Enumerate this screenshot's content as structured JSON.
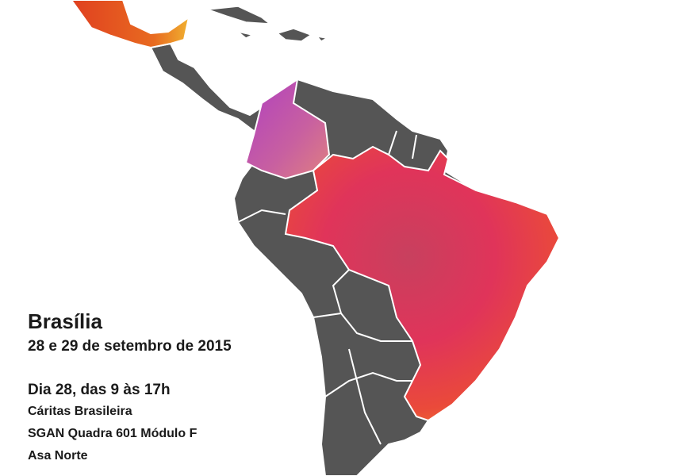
{
  "event": {
    "city": "Brasília",
    "dates": "28 e 29 de setembro de 2015",
    "schedule": "Dia 28, das 9 às 17h",
    "venue": "Cáritas Brasileira",
    "address": "SGAN Quadra 601 Módulo F",
    "district": "Asa Norte"
  }
}
